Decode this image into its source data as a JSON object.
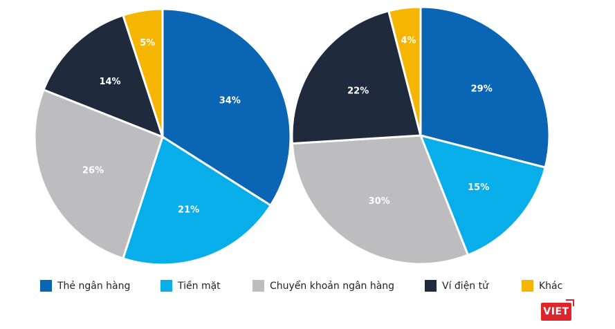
{
  "chart_data": [
    {
      "type": "pie",
      "categories": [
        "Thẻ ngân hàng",
        "Tiền mặt",
        "Chuyển khoản ngân hàng",
        "Ví điện tử",
        "Khác"
      ],
      "values": [
        34,
        21,
        26,
        14,
        5
      ],
      "labels": [
        "34%",
        "21%",
        "26%",
        "14%",
        "5%"
      ]
    },
    {
      "type": "pie",
      "categories": [
        "Thẻ ngân hàng",
        "Tiền mặt",
        "Chuyển khoản ngân hàng",
        "Ví điện tử",
        "Khác"
      ],
      "values": [
        29,
        15,
        30,
        22,
        4
      ],
      "labels": [
        "29%",
        "15%",
        "30%",
        "22%",
        "4%"
      ]
    }
  ],
  "colors": [
    "#0a66b4",
    "#08aeea",
    "#bdbdc0",
    "#1f2a3d",
    "#f5b500"
  ],
  "legend": [
    "Thẻ ngân hàng",
    "Tiền mặt",
    "Chuyển khoản ngân hàng",
    "Ví điện tử",
    "Khác"
  ],
  "logo": "VIET"
}
